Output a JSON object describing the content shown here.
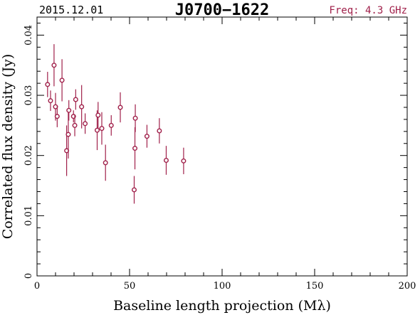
{
  "header": {
    "date": "2015.12.01",
    "source": "J0700−1622",
    "freq_text": "Freq: 4.3 GHz",
    "freq_color": "#a0204a"
  },
  "chart_data": {
    "type": "scatter",
    "xlabel": "Baseline length projection (Mλ)",
    "ylabel": "Correlated flux density (Jy)",
    "xlim": [
      0,
      200
    ],
    "ylim": [
      0,
      0.043
    ],
    "xticks": [
      0,
      50,
      100,
      150,
      200
    ],
    "xtick_labels": [
      "0",
      "50",
      "100",
      "150",
      "200"
    ],
    "yticks": [
      0,
      0.01,
      0.02,
      0.03,
      0.04
    ],
    "ytick_labels": [
      "0",
      "0.01",
      "0.02",
      "0.03",
      "0.04"
    ],
    "grid": false,
    "marker_color": "#a0204a",
    "points": [
      {
        "x": 5.7,
        "y": 0.0318,
        "err": 0.0021
      },
      {
        "x": 7.3,
        "y": 0.0291,
        "err": 0.0017
      },
      {
        "x": 9.2,
        "y": 0.035,
        "err": 0.0035
      },
      {
        "x": 10.0,
        "y": 0.0281,
        "err": 0.0023
      },
      {
        "x": 10.9,
        "y": 0.0265,
        "err": 0.0018
      },
      {
        "x": 13.5,
        "y": 0.0325,
        "err": 0.0035
      },
      {
        "x": 16.0,
        "y": 0.0208,
        "err": 0.0042
      },
      {
        "x": 16.9,
        "y": 0.0235,
        "err": 0.004
      },
      {
        "x": 17.2,
        "y": 0.0275,
        "err": 0.0017
      },
      {
        "x": 19.7,
        "y": 0.0265,
        "err": 0.001
      },
      {
        "x": 20.4,
        "y": 0.025,
        "err": 0.0018
      },
      {
        "x": 20.9,
        "y": 0.0293,
        "err": 0.0017
      },
      {
        "x": 24.1,
        "y": 0.0281,
        "err": 0.0036
      },
      {
        "x": 26.0,
        "y": 0.0253,
        "err": 0.0017
      },
      {
        "x": 32.5,
        "y": 0.0242,
        "err": 0.0033
      },
      {
        "x": 33.0,
        "y": 0.0267,
        "err": 0.0022
      },
      {
        "x": 35.0,
        "y": 0.0245,
        "err": 0.0027
      },
      {
        "x": 37.0,
        "y": 0.0188,
        "err": 0.003
      },
      {
        "x": 40.1,
        "y": 0.025,
        "err": 0.0017
      },
      {
        "x": 45.0,
        "y": 0.028,
        "err": 0.0025
      },
      {
        "x": 52.5,
        "y": 0.0143,
        "err": 0.0023
      },
      {
        "x": 52.9,
        "y": 0.0212,
        "err": 0.0035
      },
      {
        "x": 53.1,
        "y": 0.0262,
        "err": 0.0023
      },
      {
        "x": 59.4,
        "y": 0.0232,
        "err": 0.0019
      },
      {
        "x": 66.1,
        "y": 0.0241,
        "err": 0.0021
      },
      {
        "x": 69.8,
        "y": 0.0192,
        "err": 0.0024
      },
      {
        "x": 79.2,
        "y": 0.0191,
        "err": 0.0022
      }
    ]
  }
}
